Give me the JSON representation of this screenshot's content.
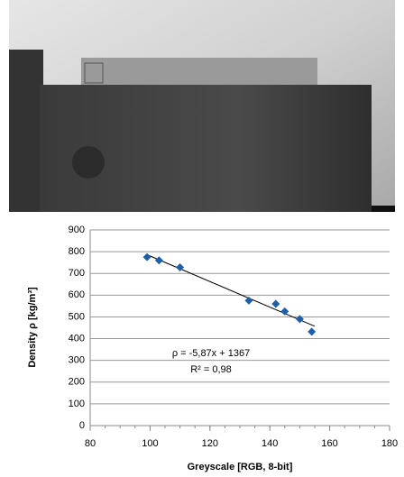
{
  "chart_data": {
    "type": "scatter",
    "x_label": "Greyscale [RGB, 8-bit]",
    "y_label": "Density  ρ  [kg/m³]",
    "annotations": [
      "ρ = -5,87x + 1367",
      "R² = 0,98"
    ],
    "series": [
      {
        "color": "#1f5fa8",
        "x": [
          99,
          103,
          110,
          133,
          142,
          145,
          150,
          154
        ],
        "values": [
          775,
          760,
          728,
          575,
          560,
          525,
          490,
          432
        ]
      }
    ],
    "trendline": {
      "color": "#000000",
      "x": [
        99,
        155
      ],
      "values": [
        786,
        457
      ]
    },
    "xlim": [
      80,
      180
    ],
    "xticks": [
      80,
      100,
      120,
      140,
      160,
      180
    ],
    "ylim": [
      0,
      900
    ],
    "yticks": [
      0,
      100,
      200,
      300,
      400,
      500,
      600,
      700,
      800,
      900
    ],
    "grid": true
  }
}
